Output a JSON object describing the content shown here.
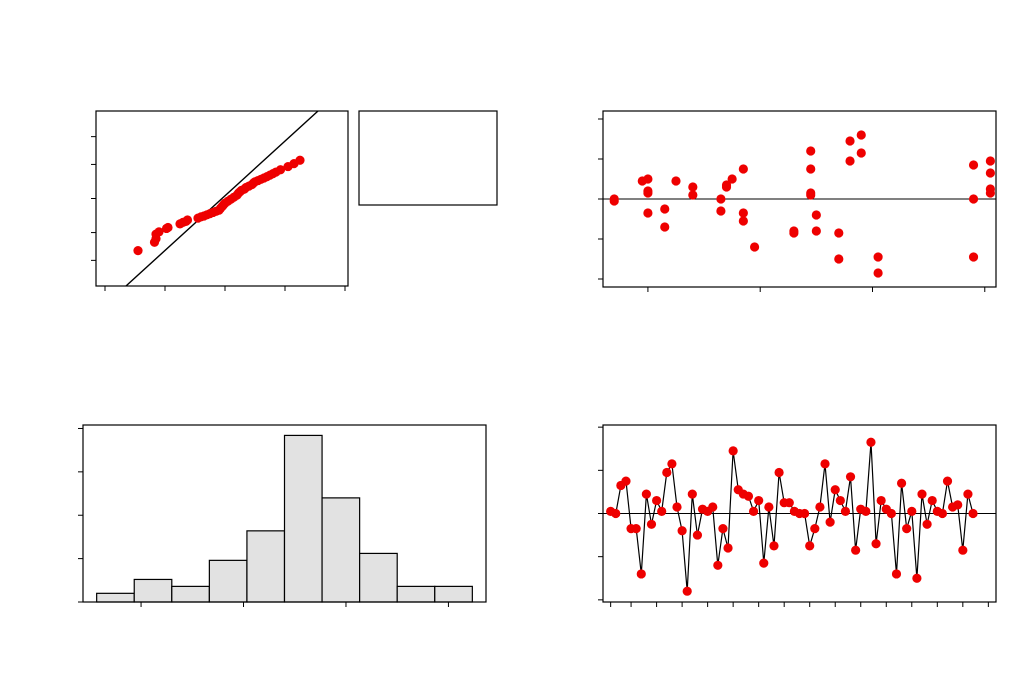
{
  "colors": {
    "point": "#ee0000",
    "line": "#000000",
    "bar_fill": "#e2e2e2",
    "frame": "#000000"
  },
  "legend_box_text": "",
  "chart_data": [
    {
      "id": "normal-probability",
      "type": "scatter",
      "title": "",
      "xlabel": "",
      "ylabel": "",
      "xlim": [
        -4.3,
        4.1
      ],
      "ylim": [
        0.05,
        99.95
      ],
      "xticks": [
        -4,
        -2,
        0,
        2,
        4
      ],
      "yticks": [
        1,
        10,
        50,
        90,
        99
      ],
      "y_scale": "normal-probability",
      "fit_line": [
        [
          -3.3,
          0.05
        ],
        [
          3.1,
          99.95
        ]
      ],
      "points": [
        [
          -2.9,
          2.5
        ],
        [
          -2.35,
          5
        ],
        [
          -2.3,
          6.5
        ],
        [
          -2.3,
          9
        ],
        [
          -2.2,
          10.5
        ],
        [
          -1.95,
          13
        ],
        [
          -1.9,
          13.8
        ],
        [
          -1.5,
          17
        ],
        [
          -1.4,
          18.5
        ],
        [
          -1.3,
          19.5
        ],
        [
          -1.25,
          21
        ],
        [
          -0.9,
          23
        ],
        [
          -0.8,
          24.5
        ],
        [
          -0.7,
          25.5
        ],
        [
          -0.6,
          27
        ],
        [
          -0.5,
          28.5
        ],
        [
          -0.4,
          30
        ],
        [
          -0.3,
          31.5
        ],
        [
          -0.2,
          33
        ],
        [
          -0.15,
          35.5
        ],
        [
          -0.1,
          38
        ],
        [
          -0.05,
          40.5
        ],
        [
          0.0,
          43
        ],
        [
          0.1,
          46
        ],
        [
          0.2,
          49
        ],
        [
          0.3,
          52
        ],
        [
          0.4,
          55
        ],
        [
          0.45,
          58
        ],
        [
          0.5,
          60
        ],
        [
          0.55,
          62
        ],
        [
          0.65,
          64
        ],
        [
          0.7,
          66
        ],
        [
          0.8,
          68
        ],
        [
          0.9,
          70
        ],
        [
          0.95,
          72
        ],
        [
          1.0,
          73.5
        ],
        [
          1.1,
          75
        ],
        [
          1.2,
          76.5
        ],
        [
          1.3,
          78
        ],
        [
          1.4,
          79.5
        ],
        [
          1.5,
          81
        ],
        [
          1.6,
          82.5
        ],
        [
          1.7,
          84
        ],
        [
          1.85,
          86
        ],
        [
          2.1,
          88.5
        ],
        [
          2.3,
          90.5
        ],
        [
          2.5,
          92.5
        ]
      ]
    },
    {
      "id": "residuals-vs-fits",
      "type": "scatter",
      "title": "",
      "xlabel": "",
      "ylabel": "",
      "xlim": [
        -0.4,
        3.1
      ],
      "ylim": [
        -2.2,
        2.2
      ],
      "xticks": [
        0,
        1,
        2,
        3
      ],
      "yticks": [
        -2,
        -1,
        0,
        1,
        2
      ],
      "reference_line_y": 0,
      "points": [
        [
          -0.3,
          0
        ],
        [
          -0.3,
          -0.05
        ],
        [
          -0.05,
          0.45
        ],
        [
          0.0,
          0.5
        ],
        [
          0.0,
          0.2
        ],
        [
          0.0,
          0.15
        ],
        [
          0.0,
          -0.35
        ],
        [
          0.15,
          -0.25
        ],
        [
          0.15,
          -0.7
        ],
        [
          0.25,
          0.45
        ],
        [
          0.4,
          0.3
        ],
        [
          0.4,
          0.1
        ],
        [
          0.65,
          0
        ],
        [
          0.65,
          -0.3
        ],
        [
          0.7,
          0.3
        ],
        [
          0.7,
          0.35
        ],
        [
          0.75,
          0.5
        ],
        [
          0.85,
          -0.35
        ],
        [
          0.85,
          -0.55
        ],
        [
          0.85,
          0.75
        ],
        [
          0.95,
          -1.2
        ],
        [
          1.3,
          -0.8
        ],
        [
          1.3,
          -0.85
        ],
        [
          1.45,
          0.15
        ],
        [
          1.45,
          0.1
        ],
        [
          1.45,
          0.75
        ],
        [
          1.45,
          1.2
        ],
        [
          1.5,
          -0.4
        ],
        [
          1.5,
          -0.8
        ],
        [
          1.7,
          -0.85
        ],
        [
          1.7,
          -1.5
        ],
        [
          1.8,
          0.95
        ],
        [
          1.8,
          1.45
        ],
        [
          1.9,
          1.15
        ],
        [
          1.9,
          1.6
        ],
        [
          2.05,
          -1.45
        ],
        [
          2.05,
          -1.85
        ],
        [
          2.9,
          0.85
        ],
        [
          2.9,
          0
        ],
        [
          2.9,
          -1.45
        ],
        [
          3.05,
          0.95
        ],
        [
          3.05,
          0.65
        ],
        [
          3.05,
          0.25
        ],
        [
          3.05,
          0.15
        ]
      ]
    },
    {
      "id": "histogram",
      "type": "bar",
      "title": "",
      "xlabel": "",
      "ylabel": "",
      "xlim": [
        -3.85,
        2.05
      ],
      "ylim": [
        0,
        10.2
      ],
      "xticks": [
        -3,
        -1.5,
        0,
        1.5
      ],
      "yticks": [
        0,
        2.5,
        5,
        7.5,
        10
      ],
      "bins": [
        {
          "x0": -3.65,
          "x1": -3.1,
          "value": 0.5
        },
        {
          "x0": -3.1,
          "x1": -2.55,
          "value": 1.3
        },
        {
          "x0": -2.55,
          "x1": -2.0,
          "value": 0.9
        },
        {
          "x0": -2.0,
          "x1": -1.45,
          "value": 2.4
        },
        {
          "x0": -1.45,
          "x1": -0.9,
          "value": 4.1
        },
        {
          "x0": -0.9,
          "x1": -0.35,
          "value": 9.6
        },
        {
          "x0": -0.35,
          "x1": 0.2,
          "value": 6.0
        },
        {
          "x0": 0.2,
          "x1": 0.75,
          "value": 2.8
        },
        {
          "x0": 0.75,
          "x1": 1.3,
          "value": 0.9
        },
        {
          "x0": 1.3,
          "x1": 1.85,
          "value": 0.9
        }
      ]
    },
    {
      "id": "residuals-vs-order",
      "type": "line",
      "title": "",
      "xlabel": "",
      "ylabel": "",
      "xlim": [
        -0.5,
        76.5
      ],
      "ylim": [
        -2.05,
        2.05
      ],
      "xticks": [
        1,
        5,
        10,
        15,
        20,
        25,
        30,
        35,
        40,
        45,
        50,
        55,
        60,
        65,
        70,
        75
      ],
      "yticks": [
        -2,
        -1,
        0,
        1,
        2
      ],
      "reference_line_y": 0,
      "values": [
        0.05,
        0,
        0.65,
        0.75,
        -0.35,
        -0.35,
        -1.4,
        0.45,
        -0.25,
        0.3,
        0.05,
        0.95,
        1.15,
        0.15,
        -0.4,
        -1.8,
        0.45,
        -0.5,
        0.1,
        0.05,
        0.15,
        -1.2,
        -0.35,
        -0.8,
        1.45,
        0.55,
        0.45,
        0.4,
        0.05,
        0.3,
        -1.15,
        0.15,
        -0.75,
        0.95,
        0.25,
        0.25,
        0.05,
        0,
        0,
        -0.75,
        -0.35,
        0.15,
        1.15,
        -0.2,
        0.55,
        0.3,
        0.05,
        0.85,
        -0.85,
        0.1,
        0.05,
        1.65,
        -0.7,
        0.3,
        0.1,
        0,
        -1.4,
        0.7,
        -0.35,
        0.05,
        -1.5,
        0.45,
        -0.25,
        0.3,
        0.05,
        0,
        0.75,
        0.15,
        0.2,
        -0.85,
        0.45,
        0
      ]
    }
  ]
}
